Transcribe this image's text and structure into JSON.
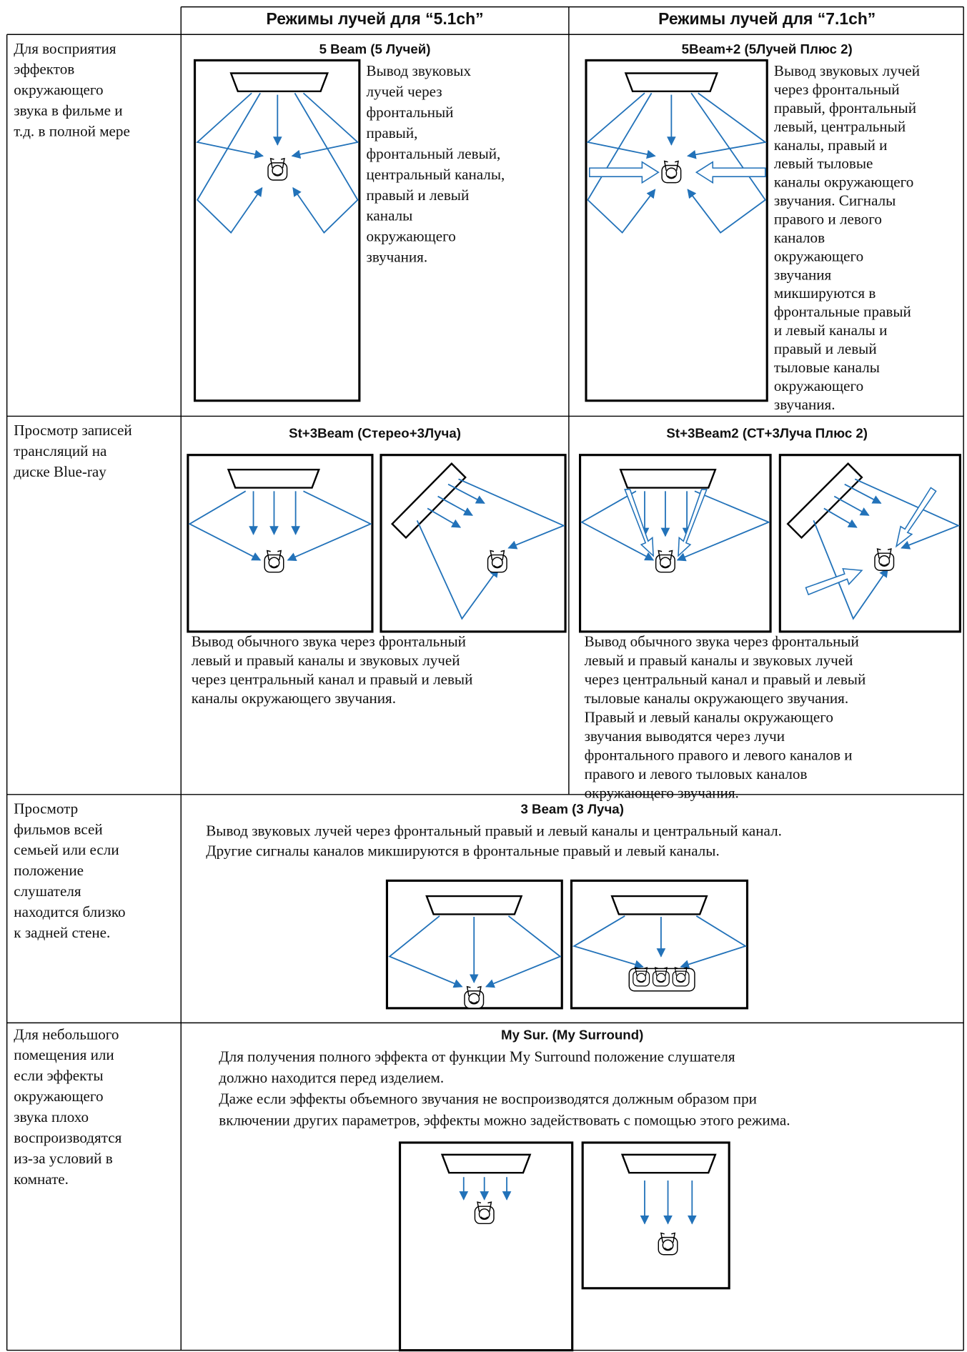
{
  "header": {
    "col_51": "Режимы лучей для “5.1ch”",
    "col_71": "Режимы лучей для “7.1ch”"
  },
  "rows": [
    {
      "purpose": [
        "Для восприятия",
        "эффектов",
        "окружающего",
        "звука в фильме и",
        "т.д. в полной мере"
      ],
      "modes": [
        {
          "title": "5 Beam (5 Лучей)",
          "description": [
            "Вывод звуковых",
            "лучей через",
            "фронтальный",
            "правый,",
            "фронтальный левый,",
            "центральный каналы,",
            "правый и левый",
            "каналы",
            "окружающего",
            "звучания."
          ]
        },
        {
          "title": "5Beam+2 (5Лучей Плюс 2)",
          "description": [
            "Вывод звуковых лучей",
            "через фронтальный",
            "правый, фронтальный",
            "левый, центральный",
            "каналы, правый и",
            "левый тыловые",
            "каналы окружающего",
            "звучания. Сигналы",
            "правого и левого",
            "каналов",
            "окружающего",
            "звучания",
            "микшируются в",
            "фронтальные правый",
            "и левый каналы и",
            "правый и левый",
            "тыловые каналы",
            "окружающего",
            "звучания."
          ]
        }
      ]
    },
    {
      "purpose": [
        "Просмотр записей",
        "трансляций на",
        "диске Blue-ray"
      ],
      "modes": [
        {
          "title": "St+3Beam (Стерео+3Луча)",
          "description": [
            "Вывод обычного звука через фронтальный",
            "левый и правый каналы и звуковых лучей",
            "через центральный канал и правый и левый",
            "каналы окружающего звучания."
          ]
        },
        {
          "title": "St+3Beam2 (СТ+3Луча Плюс 2)",
          "description": [
            "Вывод обычного звука через фронтальный",
            "левый и правый каналы и звуковых лучей",
            "через центральный канал и правый и левый",
            "тыловые каналы окружающего звучания.",
            "Правый и левый каналы окружающего",
            "звучания выводятся через лучи",
            "фронтального правого и левого каналов и",
            "правого и левого тыловых каналов",
            "окружающего звучания."
          ]
        }
      ]
    },
    {
      "purpose": [
        "Просмотр",
        "фильмов всей",
        "семьей или если",
        "положение",
        "слушателя",
        "находится близко",
        "к задней стене."
      ],
      "modes": [
        {
          "title": "3 Beam (3 Луча)",
          "description": [
            "Вывод звуковых лучей через фронтальный правый и левый каналы и центральный канал.",
            "Другие сигналы каналов микшируются в фронтальные правый и левый каналы."
          ]
        }
      ]
    },
    {
      "purpose": [
        "Для небольшого",
        "помещения или",
        "если эффекты",
        "окружающего",
        "звука плохо",
        "воспроизводятся",
        "из-за условий в",
        "комнате."
      ],
      "modes": [
        {
          "title": "My Sur. (My Surround)",
          "description": [
            "Для получения полного эффекта от функции My Surround положение слушателя",
            "должно находится перед изделием.",
            "Даже если эффекты объемного звучания не воспроизводятся должным образом при",
            "включении других параметров, эффекты можно задействовать с помощью этого режима."
          ]
        }
      ]
    }
  ]
}
